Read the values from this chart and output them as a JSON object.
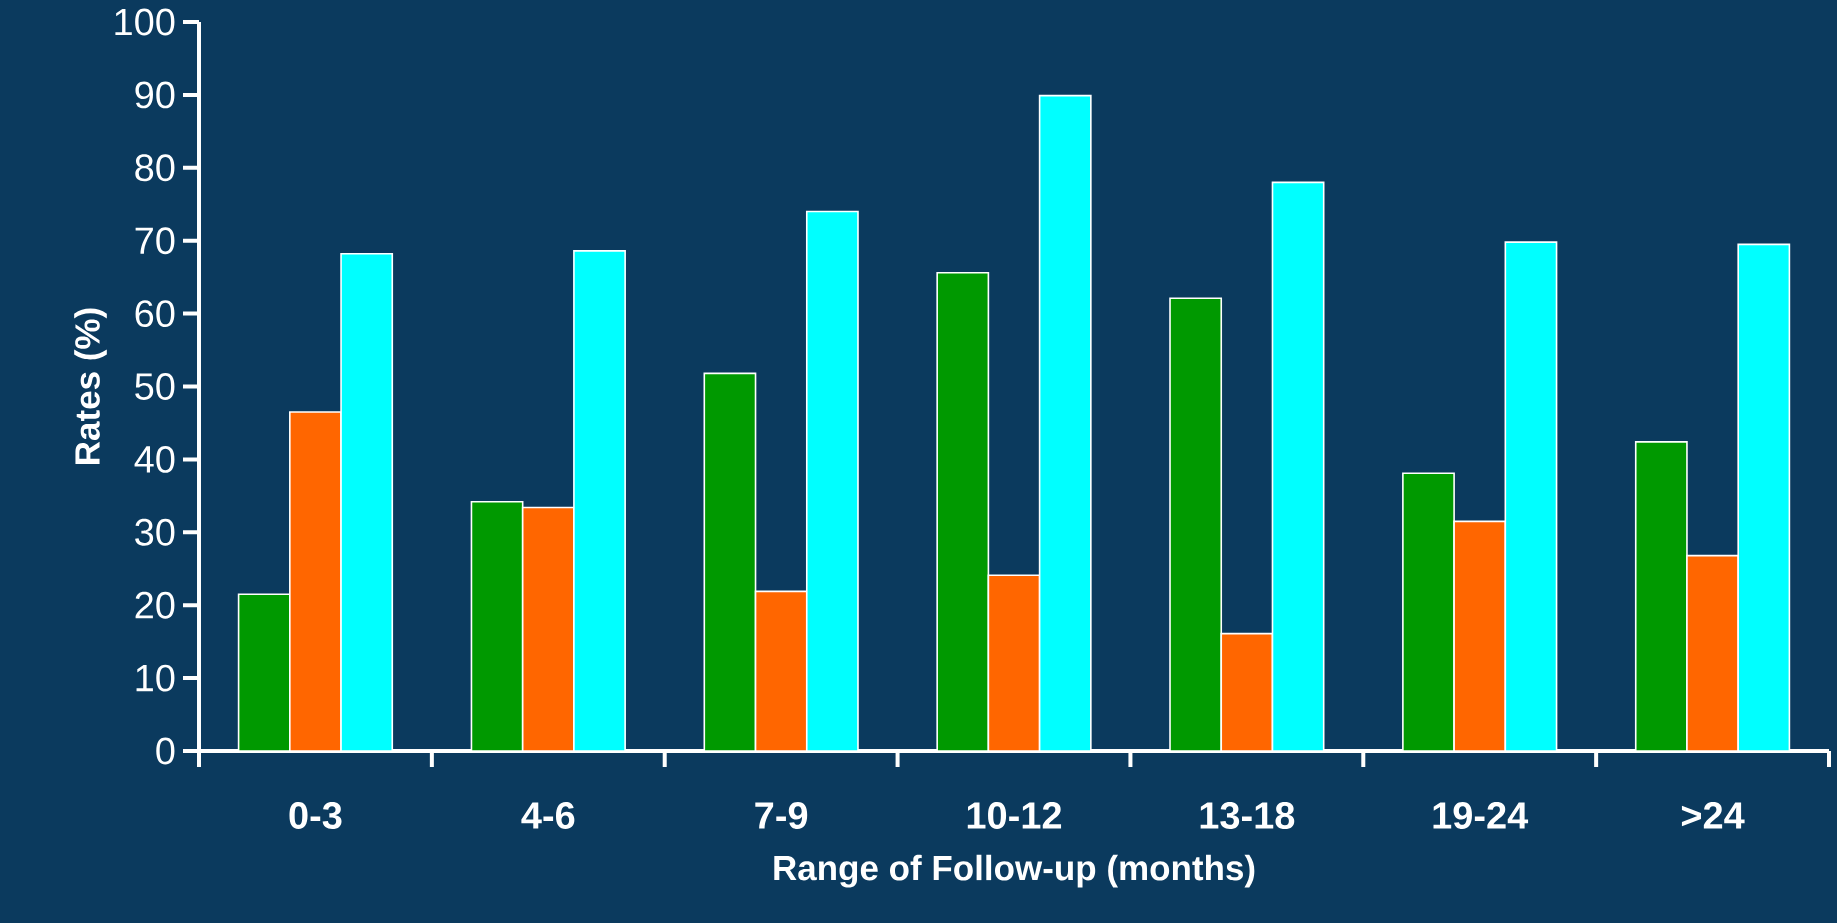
{
  "chart_data": {
    "type": "bar",
    "xlabel": "Range of Follow-up (months)",
    "ylabel": "Rates (%)",
    "categories": [
      "0-3",
      "4-6",
      "7-9",
      "10-12",
      "13-18",
      "19-24",
      ">24"
    ],
    "series": [
      {
        "color": "#009900",
        "values": [
          21.5,
          34.2,
          51.8,
          65.6,
          62.1,
          38.1,
          42.4
        ]
      },
      {
        "color": "#ff6600",
        "values": [
          46.5,
          33.4,
          21.9,
          24.1,
          16.1,
          31.5,
          26.8
        ]
      },
      {
        "color": "#00ffff",
        "values": [
          68.2,
          68.6,
          74.0,
          89.9,
          78.0,
          69.8,
          69.5
        ]
      }
    ],
    "ylim": [
      0,
      100
    ],
    "yticks": [
      0,
      10,
      20,
      30,
      40,
      50,
      60,
      70,
      80,
      90,
      100
    ],
    "grid": false
  }
}
